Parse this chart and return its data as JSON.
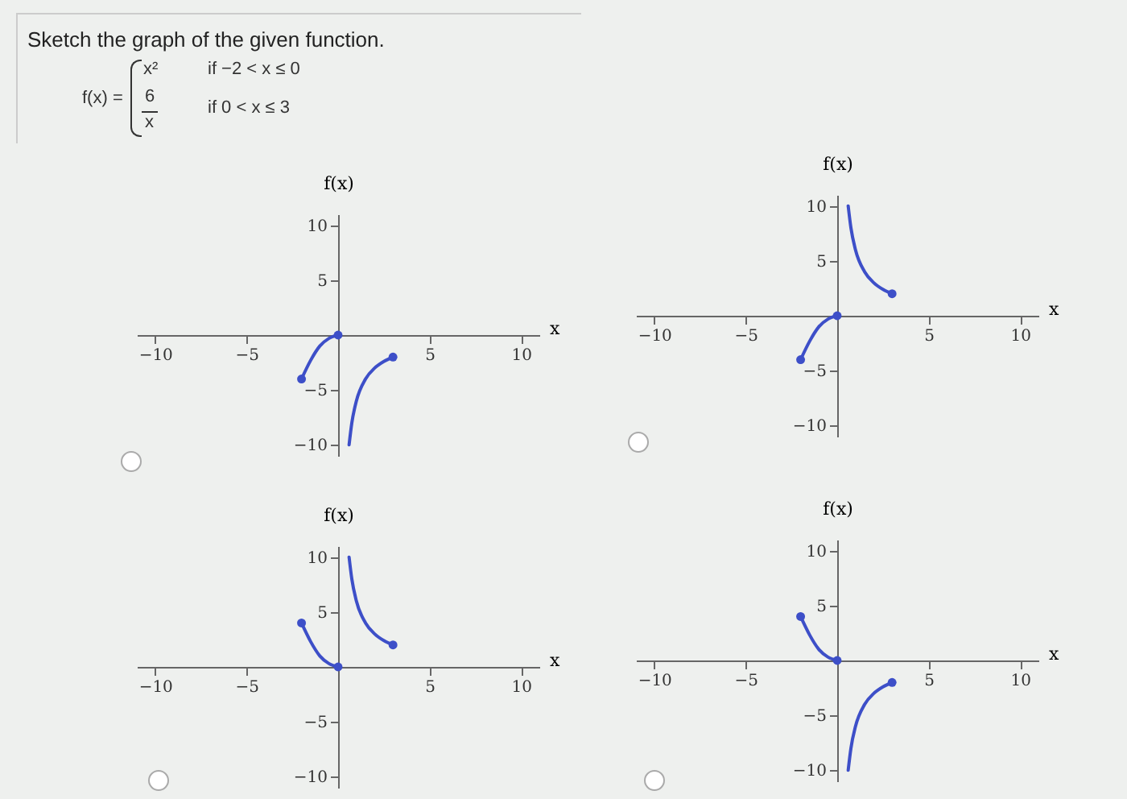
{
  "chart_data": [
    {
      "type": "other",
      "title": "Sketch the graph of the given function.",
      "annotations": [
        "f(x) =",
        "x²",
        "if −2 < x ≤ 0",
        "6",
        "x",
        "if 0 < x ≤ 3"
      ]
    },
    {
      "type": "line",
      "xlabel": "x",
      "ylabel": "f(x)",
      "xlim": [
        -11,
        11
      ],
      "ylim": [
        -11,
        11
      ],
      "xticks": [
        -10,
        -5,
        5,
        10
      ],
      "yticks": [
        -10,
        -5,
        5,
        10
      ],
      "series": [
        {
          "type": "line",
          "color": "#3d4fc8",
          "x": [
            -2,
            -1.5,
            -1,
            -0.5,
            0
          ],
          "values": [
            -4,
            -2.3,
            -1,
            -0.3,
            0
          ]
        },
        {
          "type": "line",
          "color": "#3d4fc8",
          "x": [
            0.6,
            0.75,
            1,
            1.5,
            2,
            2.5,
            3
          ],
          "values": [
            -10,
            -8,
            -6,
            -4,
            -3,
            -2.4,
            -2
          ]
        },
        {
          "type": "scatter",
          "marker": "circle",
          "color": "#3d4fc8",
          "x": [
            -2,
            0,
            3
          ],
          "values": [
            -4,
            0,
            -2
          ]
        }
      ]
    },
    {
      "type": "line",
      "xlabel": "x",
      "ylabel": "f(x)",
      "xlim": [
        -11,
        11
      ],
      "ylim": [
        -11,
        11
      ],
      "xticks": [
        -10,
        -5,
        5,
        10
      ],
      "yticks": [
        -10,
        -5,
        5,
        10
      ],
      "series": [
        {
          "type": "line",
          "color": "#3d4fc8",
          "x": [
            -2,
            -1.5,
            -1,
            -0.5,
            0
          ],
          "values": [
            -4,
            -2.3,
            -1,
            -0.3,
            0
          ]
        },
        {
          "type": "line",
          "color": "#3d4fc8",
          "x": [
            0.6,
            0.75,
            1,
            1.5,
            2,
            2.5,
            3
          ],
          "values": [
            10,
            8,
            6,
            4,
            3,
            2.4,
            2
          ]
        },
        {
          "type": "scatter",
          "marker": "circle",
          "color": "#3d4fc8",
          "x": [
            -2,
            0,
            3
          ],
          "values": [
            -4,
            0,
            2
          ]
        }
      ]
    },
    {
      "type": "line",
      "xlabel": "x",
      "ylabel": "f(x)",
      "xlim": [
        -11,
        11
      ],
      "ylim": [
        -11,
        11
      ],
      "xticks": [
        -10,
        -5,
        5,
        10
      ],
      "yticks": [
        -10,
        -5,
        5,
        10
      ],
      "series": [
        {
          "type": "line",
          "color": "#3d4fc8",
          "x": [
            -2,
            -1.5,
            -1,
            -0.5,
            0
          ],
          "values": [
            4,
            2.3,
            1,
            0.3,
            0
          ]
        },
        {
          "type": "line",
          "color": "#3d4fc8",
          "x": [
            0.6,
            0.75,
            1,
            1.5,
            2,
            2.5,
            3
          ],
          "values": [
            10,
            8,
            6,
            4,
            3,
            2.4,
            2
          ]
        },
        {
          "type": "scatter",
          "marker": "circle",
          "color": "#3d4fc8",
          "x": [
            -2,
            0,
            3
          ],
          "values": [
            4,
            0,
            2
          ]
        }
      ]
    },
    {
      "type": "line",
      "xlabel": "x",
      "ylabel": "f(x)",
      "xlim": [
        -11,
        11
      ],
      "ylim": [
        -11,
        11
      ],
      "xticks": [
        -10,
        -5,
        5,
        10
      ],
      "yticks": [
        -10,
        -5,
        5,
        10
      ],
      "series": [
        {
          "type": "line",
          "color": "#3d4fc8",
          "x": [
            -2,
            -1.5,
            -1,
            -0.5,
            0
          ],
          "values": [
            4,
            2.3,
            1,
            0.3,
            0
          ]
        },
        {
          "type": "line",
          "color": "#3d4fc8",
          "x": [
            0.6,
            0.75,
            1,
            1.5,
            2,
            2.5,
            3
          ],
          "values": [
            -10,
            -8,
            -6,
            -4,
            -3,
            -2.4,
            -2
          ]
        },
        {
          "type": "scatter",
          "marker": "circle",
          "color": "#3d4fc8",
          "x": [
            -2,
            0,
            3
          ],
          "values": [
            4,
            0,
            -2
          ]
        }
      ]
    }
  ]
}
